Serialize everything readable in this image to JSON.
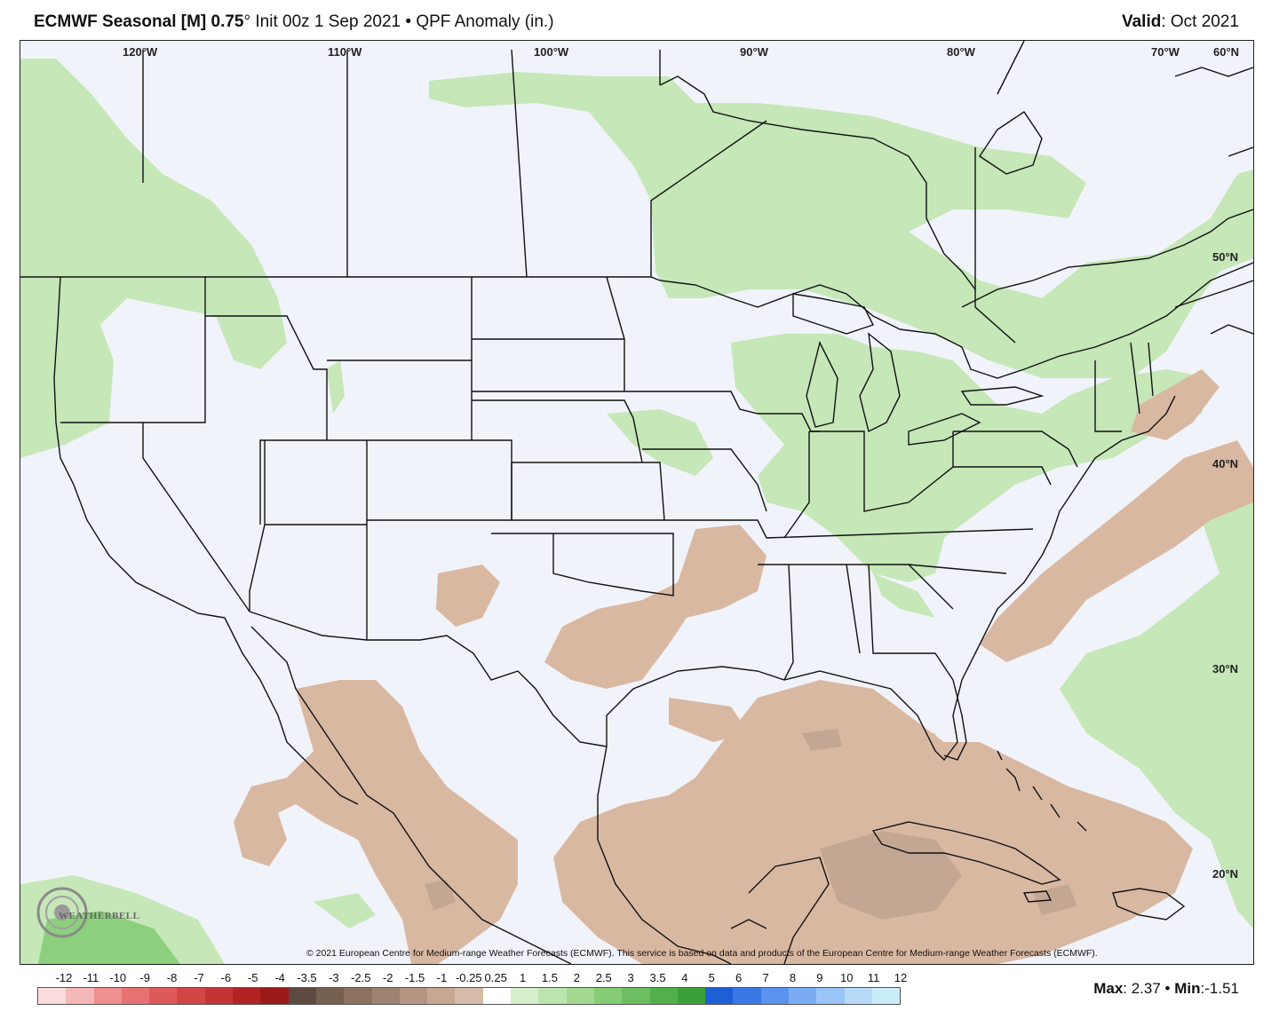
{
  "header": {
    "title_bold": "ECMWF Seasonal [M] 0.75",
    "title_rest": "° Init 00z 1 Sep 2021 • QPF Anomaly (in.)",
    "valid_label": "Valid",
    "valid_value": ": Oct 2021"
  },
  "map": {
    "lon_labels": [
      "120°W",
      "110°W",
      "100°W",
      "90°W",
      "80°W",
      "70°W",
      "60°N"
    ],
    "lat_labels": [
      "50°N",
      "40°N",
      "30°N",
      "20°N"
    ],
    "colors": {
      "ocean_land_bg": "#f1f3fa",
      "wet_anomaly": "#c6e7b8",
      "wet_anomaly_strong": "#8ccf7c",
      "dry_anomaly": "#d9b8a2",
      "dry_anomaly_strong": "#c4a792",
      "border": "#111111"
    }
  },
  "logo": {
    "text": "WEATHERBELL"
  },
  "copyright": "© 2021 European Centre for Medium-range Weather Forecasts (ECMWF). This service is based on data and products of the European Centre for Medium-range Weather Forecasts (ECMWF).",
  "legend": {
    "ticks": [
      "-12",
      "-11",
      "-10",
      "-9",
      "-8",
      "-7",
      "-6",
      "-5",
      "-4",
      "-3.5",
      "-3",
      "-2.5",
      "-2",
      "-1.5",
      "-1",
      "-0.25",
      "0.25",
      "1",
      "1.5",
      "2",
      "2.5",
      "3",
      "3.5",
      "4",
      "5",
      "6",
      "7",
      "8",
      "9",
      "10",
      "11",
      "12"
    ],
    "colors": [
      "#fbdcdc",
      "#f5b8b8",
      "#ee9090",
      "#e67272",
      "#de5a5a",
      "#d24646",
      "#c43434",
      "#b22424",
      "#9c1a1a",
      "#5e4a40",
      "#76604f",
      "#8c725f",
      "#9e8370",
      "#b39582",
      "#c5a793",
      "#d6bba8",
      "#ffffff",
      "#d6efcb",
      "#bce4ad",
      "#a3d891",
      "#86cc76",
      "#6cbe60",
      "#52b04c",
      "#3ca03a",
      "#1f5fd6",
      "#3a78e4",
      "#5a92ee",
      "#7aacf4",
      "#98c4f8",
      "#b8daf9",
      "#c8ecf8"
    ]
  },
  "stats": {
    "max_label": "Max",
    "max_value": ": 2.37",
    "sep": " • ",
    "min_label": "Min",
    "min_value": ":-1.51"
  }
}
